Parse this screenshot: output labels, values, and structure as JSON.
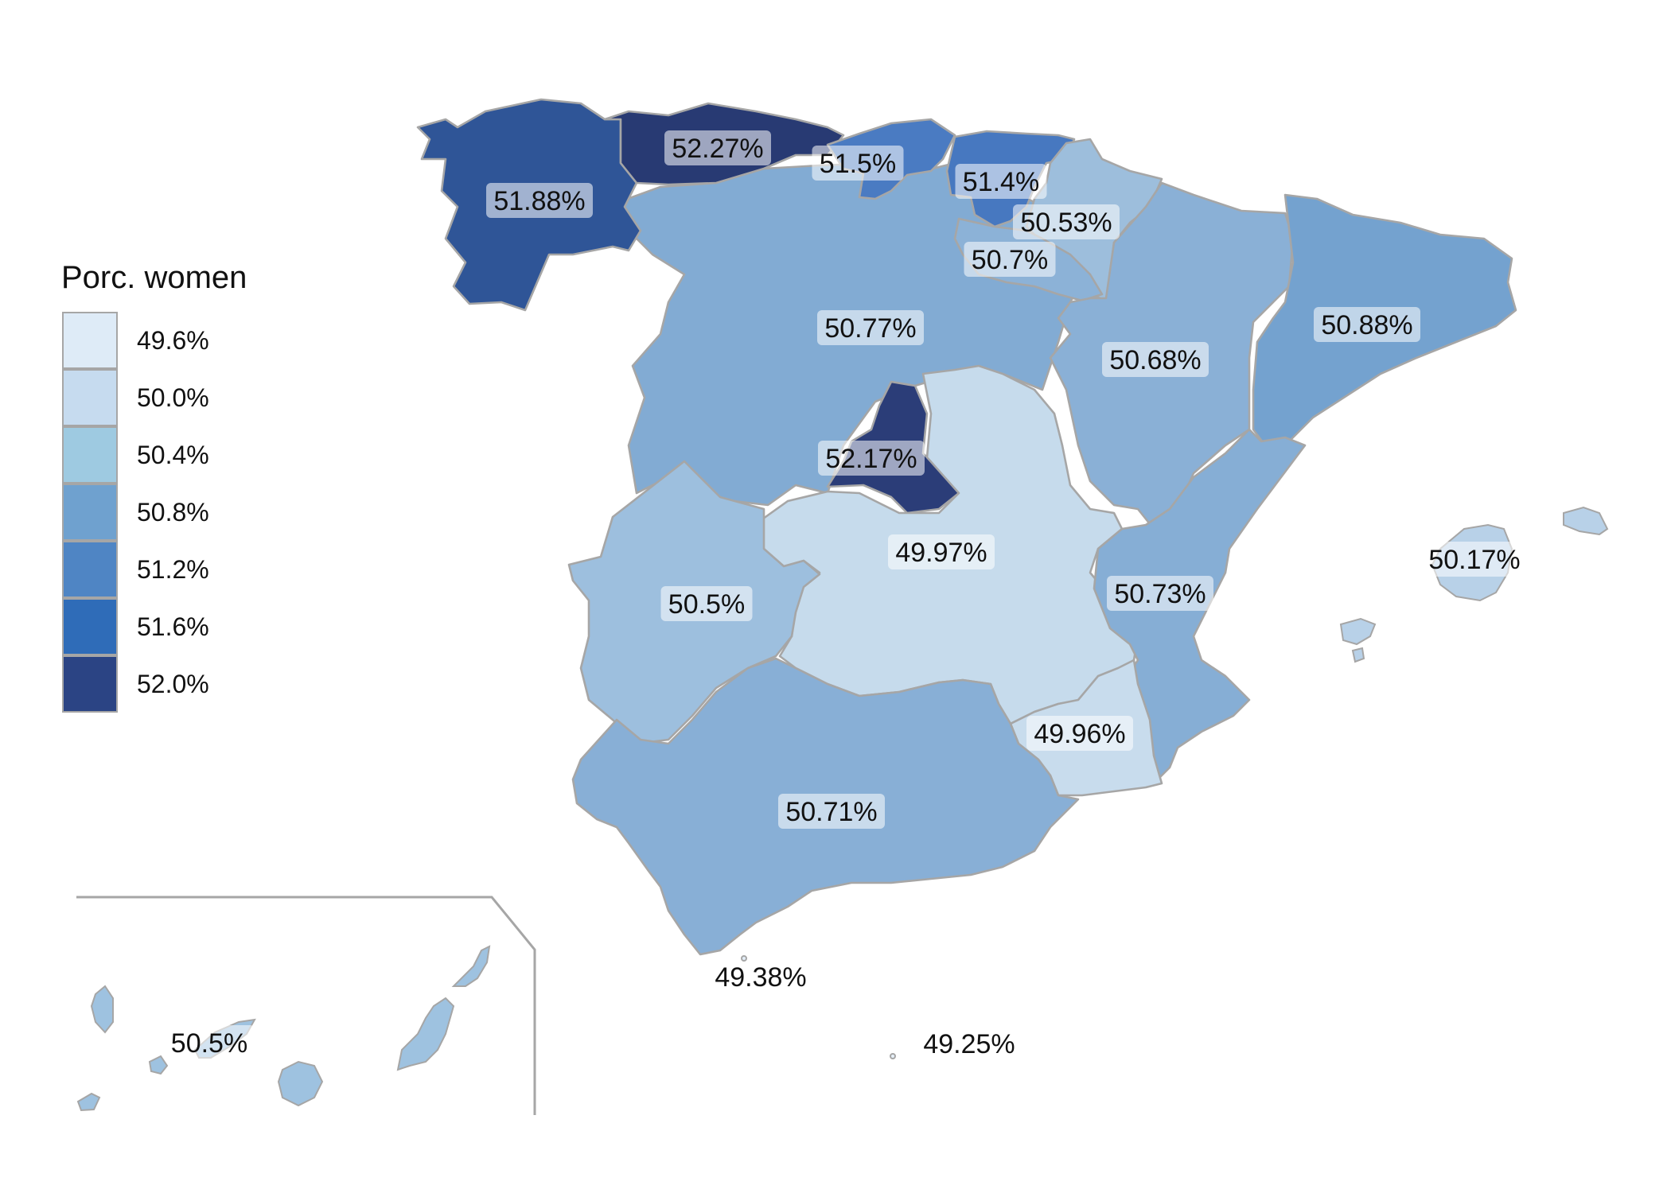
{
  "legend": {
    "title": "Porc. women",
    "entries": [
      {
        "label": "49.6%",
        "color": "#deebf7"
      },
      {
        "label": "50.0%",
        "color": "#c6dbef"
      },
      {
        "label": "50.4%",
        "color": "#9ecae1"
      },
      {
        "label": "50.8%",
        "color": "#6fa1cf"
      },
      {
        "label": "51.2%",
        "color": "#4f85c4"
      },
      {
        "label": "51.6%",
        "color": "#2f6cb8"
      },
      {
        "label": "52.0%",
        "color": "#2b4484"
      }
    ]
  },
  "regions": [
    {
      "name": "Galicia",
      "value": "51.88%",
      "color": "#2f5597"
    },
    {
      "name": "Asturias",
      "value": "52.27%",
      "color": "#283a73"
    },
    {
      "name": "Cantabria",
      "value": "51.5%",
      "color": "#4a7bc2"
    },
    {
      "name": "País Vasco",
      "value": "51.4%",
      "color": "#4778c0"
    },
    {
      "name": "Navarra",
      "value": "50.53%",
      "color": "#9dbedc"
    },
    {
      "name": "La Rioja",
      "value": "50.7%",
      "color": "#8cb2d7"
    },
    {
      "name": "Castilla y León",
      "value": "50.77%",
      "color": "#82abd3"
    },
    {
      "name": "Aragón",
      "value": "50.68%",
      "color": "#8ab0d6"
    },
    {
      "name": "Cataluña",
      "value": "50.88%",
      "color": "#74a2cf"
    },
    {
      "name": "Madrid",
      "value": "52.17%",
      "color": "#2b3d78"
    },
    {
      "name": "Castilla-La Mancha",
      "value": "49.97%",
      "color": "#c6dbec"
    },
    {
      "name": "Extremadura",
      "value": "50.5%",
      "color": "#9dbfde"
    },
    {
      "name": "Comunidad Valenciana",
      "value": "50.73%",
      "color": "#86aed5"
    },
    {
      "name": "Región de Murcia",
      "value": "49.96%",
      "color": "#c8dced"
    },
    {
      "name": "Andalucía",
      "value": "50.71%",
      "color": "#88afd6"
    },
    {
      "name": "Illes Balears",
      "value": "50.17%",
      "color": "#b8d1e8"
    },
    {
      "name": "Canarias",
      "value": "50.5%",
      "color": "#9ec2e0"
    },
    {
      "name": "Ceuta",
      "value": "49.38%",
      "color": "#e3eef8"
    },
    {
      "name": "Melilla",
      "value": "49.25%",
      "color": "#e6f0f9"
    }
  ]
}
